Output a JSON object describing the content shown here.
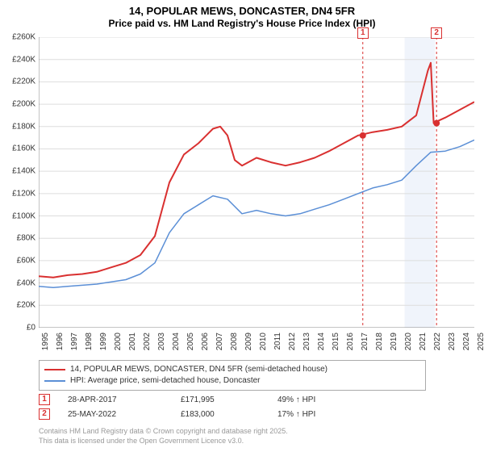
{
  "title_main": "14, POPULAR MEWS, DONCASTER, DN4 5FR",
  "title_sub": "Price paid vs. HM Land Registry's House Price Index (HPI)",
  "chart": {
    "type": "line",
    "background_color": "#ffffff",
    "grid_color": "#dddddd",
    "axis_color": "#888888",
    "x_years": [
      1995,
      1996,
      1997,
      1998,
      1999,
      2000,
      2001,
      2002,
      2003,
      2004,
      2005,
      2006,
      2007,
      2008,
      2009,
      2010,
      2011,
      2012,
      2013,
      2014,
      2015,
      2016,
      2017,
      2018,
      2019,
      2020,
      2021,
      2022,
      2023,
      2024,
      2025
    ],
    "y_min": 0,
    "y_max": 260000,
    "y_tick_step": 20000,
    "y_tick_labels": [
      "£0",
      "£20K",
      "£40K",
      "£60K",
      "£80K",
      "£100K",
      "£120K",
      "£140K",
      "£160K",
      "£180K",
      "£200K",
      "£220K",
      "£240K",
      "£260K"
    ],
    "series": [
      {
        "name": "14, POPULAR MEWS, DONCASTER, DN4 5FR (semi-detached house)",
        "color": "#d93030",
        "width": 2,
        "data": [
          [
            1995,
            46000
          ],
          [
            1996,
            45000
          ],
          [
            1997,
            47000
          ],
          [
            1998,
            48000
          ],
          [
            1999,
            50000
          ],
          [
            2000,
            54000
          ],
          [
            2001,
            58000
          ],
          [
            2002,
            65000
          ],
          [
            2003,
            82000
          ],
          [
            2004,
            130000
          ],
          [
            2005,
            155000
          ],
          [
            2006,
            165000
          ],
          [
            2007,
            178000
          ],
          [
            2007.5,
            180000
          ],
          [
            2008,
            172000
          ],
          [
            2008.5,
            150000
          ],
          [
            2009,
            145000
          ],
          [
            2010,
            152000
          ],
          [
            2011,
            148000
          ],
          [
            2012,
            145000
          ],
          [
            2013,
            148000
          ],
          [
            2014,
            152000
          ],
          [
            2015,
            158000
          ],
          [
            2016,
            165000
          ],
          [
            2017,
            172000
          ],
          [
            2018,
            175000
          ],
          [
            2019,
            177000
          ],
          [
            2020,
            180000
          ],
          [
            2021,
            190000
          ],
          [
            2021.8,
            230000
          ],
          [
            2022,
            237000
          ],
          [
            2022.2,
            183000
          ],
          [
            2022.5,
            185000
          ],
          [
            2023,
            188000
          ],
          [
            2024,
            195000
          ],
          [
            2025,
            202000
          ]
        ]
      },
      {
        "name": "HPI: Average price, semi-detached house, Doncaster",
        "color": "#5b8fd6",
        "width": 1.5,
        "data": [
          [
            1995,
            37000
          ],
          [
            1996,
            36000
          ],
          [
            1997,
            37000
          ],
          [
            1998,
            38000
          ],
          [
            1999,
            39000
          ],
          [
            2000,
            41000
          ],
          [
            2001,
            43000
          ],
          [
            2002,
            48000
          ],
          [
            2003,
            58000
          ],
          [
            2004,
            85000
          ],
          [
            2005,
            102000
          ],
          [
            2006,
            110000
          ],
          [
            2007,
            118000
          ],
          [
            2008,
            115000
          ],
          [
            2009,
            102000
          ],
          [
            2010,
            105000
          ],
          [
            2011,
            102000
          ],
          [
            2012,
            100000
          ],
          [
            2013,
            102000
          ],
          [
            2014,
            106000
          ],
          [
            2015,
            110000
          ],
          [
            2016,
            115000
          ],
          [
            2017,
            120000
          ],
          [
            2018,
            125000
          ],
          [
            2019,
            128000
          ],
          [
            2020,
            132000
          ],
          [
            2021,
            145000
          ],
          [
            2022,
            157000
          ],
          [
            2023,
            158000
          ],
          [
            2024,
            162000
          ],
          [
            2025,
            168000
          ]
        ]
      }
    ],
    "sale_markers": [
      {
        "num": "1",
        "x": 2017.32,
        "y": 171995
      },
      {
        "num": "2",
        "x": 2022.4,
        "y": 183000
      }
    ],
    "shaded_band": {
      "x_start": 2020.2,
      "x_end": 2022.3,
      "color": "#f0f4fb"
    },
    "marker_vline_color": "#d93030",
    "marker_dot_fill": "#d93030",
    "label_fontsize": 10,
    "title_fontsize": 13
  },
  "legend": {
    "rows": [
      {
        "color": "#d93030",
        "label": "14, POPULAR MEWS, DONCASTER, DN4 5FR (semi-detached house)"
      },
      {
        "color": "#5b8fd6",
        "label": "HPI: Average price, semi-detached house, Doncaster"
      }
    ]
  },
  "marker_rows": [
    {
      "num": "1",
      "date": "28-APR-2017",
      "price": "£171,995",
      "diff": "49% ↑ HPI"
    },
    {
      "num": "2",
      "date": "25-MAY-2022",
      "price": "£183,000",
      "diff": "17% ↑ HPI"
    }
  ],
  "attribution_line1": "Contains HM Land Registry data © Crown copyright and database right 2025.",
  "attribution_line2": "This data is licensed under the Open Government Licence v3.0."
}
